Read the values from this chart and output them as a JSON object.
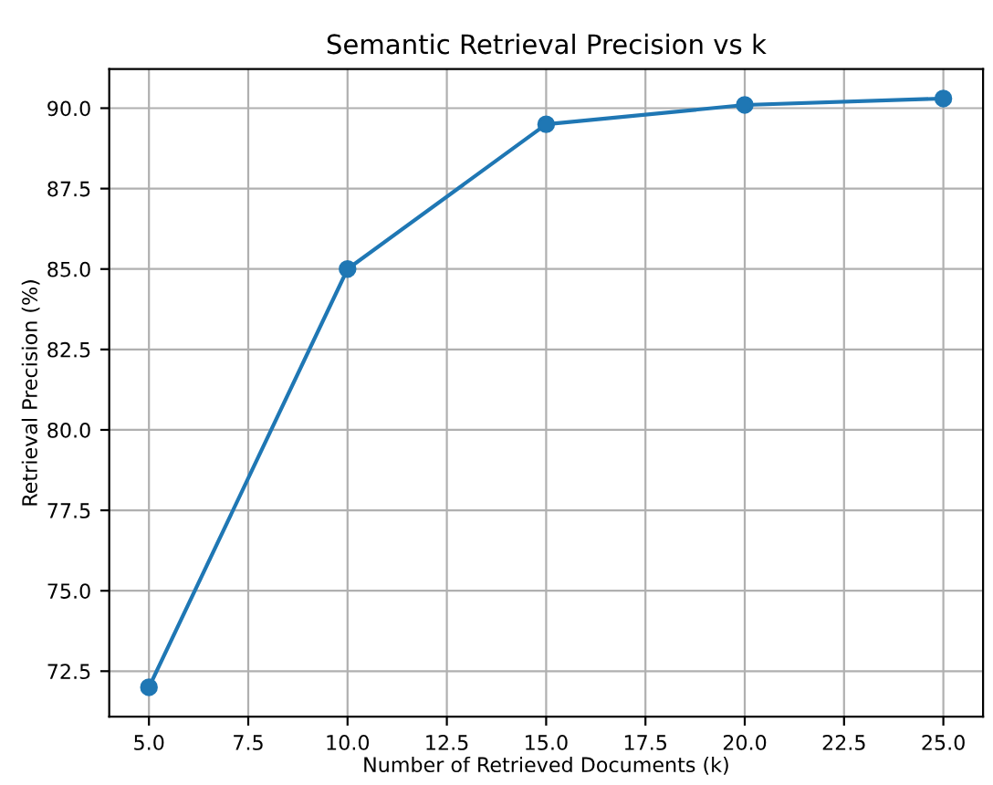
{
  "chart_data": {
    "type": "line",
    "title": "Semantic Retrieval Precision vs k",
    "xlabel": "Number of Retrieved Documents (k)",
    "ylabel": "Retrieval Precision (%)",
    "x": [
      5,
      10,
      15,
      20,
      25
    ],
    "series": [
      {
        "color": "#1f77b4",
        "values": [
          72.0,
          85.0,
          89.5,
          90.1,
          90.3
        ]
      }
    ],
    "xlim": [
      4,
      26
    ],
    "ylim": [
      71.085,
      91.215
    ],
    "xticks": [
      {
        "value": 5,
        "label": "5.0"
      },
      {
        "value": 7.5,
        "label": "7.5"
      },
      {
        "value": 10,
        "label": "10.0"
      },
      {
        "value": 12.5,
        "label": "12.5"
      },
      {
        "value": 15,
        "label": "15.0"
      },
      {
        "value": 17.5,
        "label": "17.5"
      },
      {
        "value": 20,
        "label": "20.0"
      },
      {
        "value": 22.5,
        "label": "22.5"
      },
      {
        "value": 25,
        "label": "25.0"
      }
    ],
    "yticks": [
      {
        "value": 72.5,
        "label": "72.5"
      },
      {
        "value": 75,
        "label": "75.0"
      },
      {
        "value": 77.5,
        "label": "77.5"
      },
      {
        "value": 80,
        "label": "80.0"
      },
      {
        "value": 82.5,
        "label": "82.5"
      },
      {
        "value": 85,
        "label": "85.0"
      },
      {
        "value": 87.5,
        "label": "87.5"
      },
      {
        "value": 90,
        "label": "90.0"
      }
    ],
    "grid": true,
    "marker": "circle",
    "line_style": "solid"
  }
}
